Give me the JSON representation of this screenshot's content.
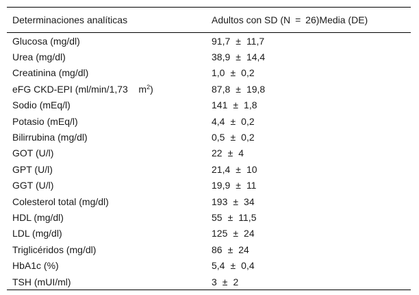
{
  "table": {
    "header": {
      "col1": "Determinaciones analíticas",
      "col2_a": "Adultos con SD (N",
      "col2_eq": "=",
      "col2_b": "26)Media (DE)"
    },
    "pm_symbol": "±",
    "rows": [
      {
        "label": "Glucosa (mg/dl)",
        "mean": "91,7",
        "sd": "11,7"
      },
      {
        "label": "Urea (mg/dl)",
        "mean": "38,9",
        "sd": "14,4"
      },
      {
        "label": "Creatinina (mg/dl)",
        "mean": "1,0",
        "sd": "0,2"
      },
      {
        "label": "eFG CKD-EPI (ml/min/1,73",
        "label_unit": "m",
        "label_sup": "2",
        "label_end": ")",
        "mean": "87,8",
        "sd": "19,8"
      },
      {
        "label": "Sodio (mEq/l)",
        "mean": "141",
        "sd": "1,8"
      },
      {
        "label": "Potasio (mEq/l)",
        "mean": "4,4",
        "sd": "0,2"
      },
      {
        "label": "Bilirrubina (mg/dl)",
        "mean": "0,5",
        "sd": "0,2"
      },
      {
        "label": "GOT (U/l)",
        "mean": "22",
        "sd": "4"
      },
      {
        "label": "GPT (U/l)",
        "mean": "21,4",
        "sd": "10"
      },
      {
        "label": "GGT (U/l)",
        "mean": "19,9",
        "sd": "11"
      },
      {
        "label": "Colesterol total (mg/dl)",
        "mean": "193",
        "sd": "34"
      },
      {
        "label": "HDL (mg/dl)",
        "mean": "55",
        "sd": "11,5"
      },
      {
        "label": "LDL (mg/dl)",
        "mean": "125",
        "sd": "24"
      },
      {
        "label": "Triglicéridos (mg/dl)",
        "mean": "86",
        "sd": "24"
      },
      {
        "label": "HbA1c (%)",
        "mean": "5,4",
        "sd": "0,4"
      },
      {
        "label": "TSH (mUI/ml)",
        "mean": "3",
        "sd": "2"
      }
    ]
  }
}
